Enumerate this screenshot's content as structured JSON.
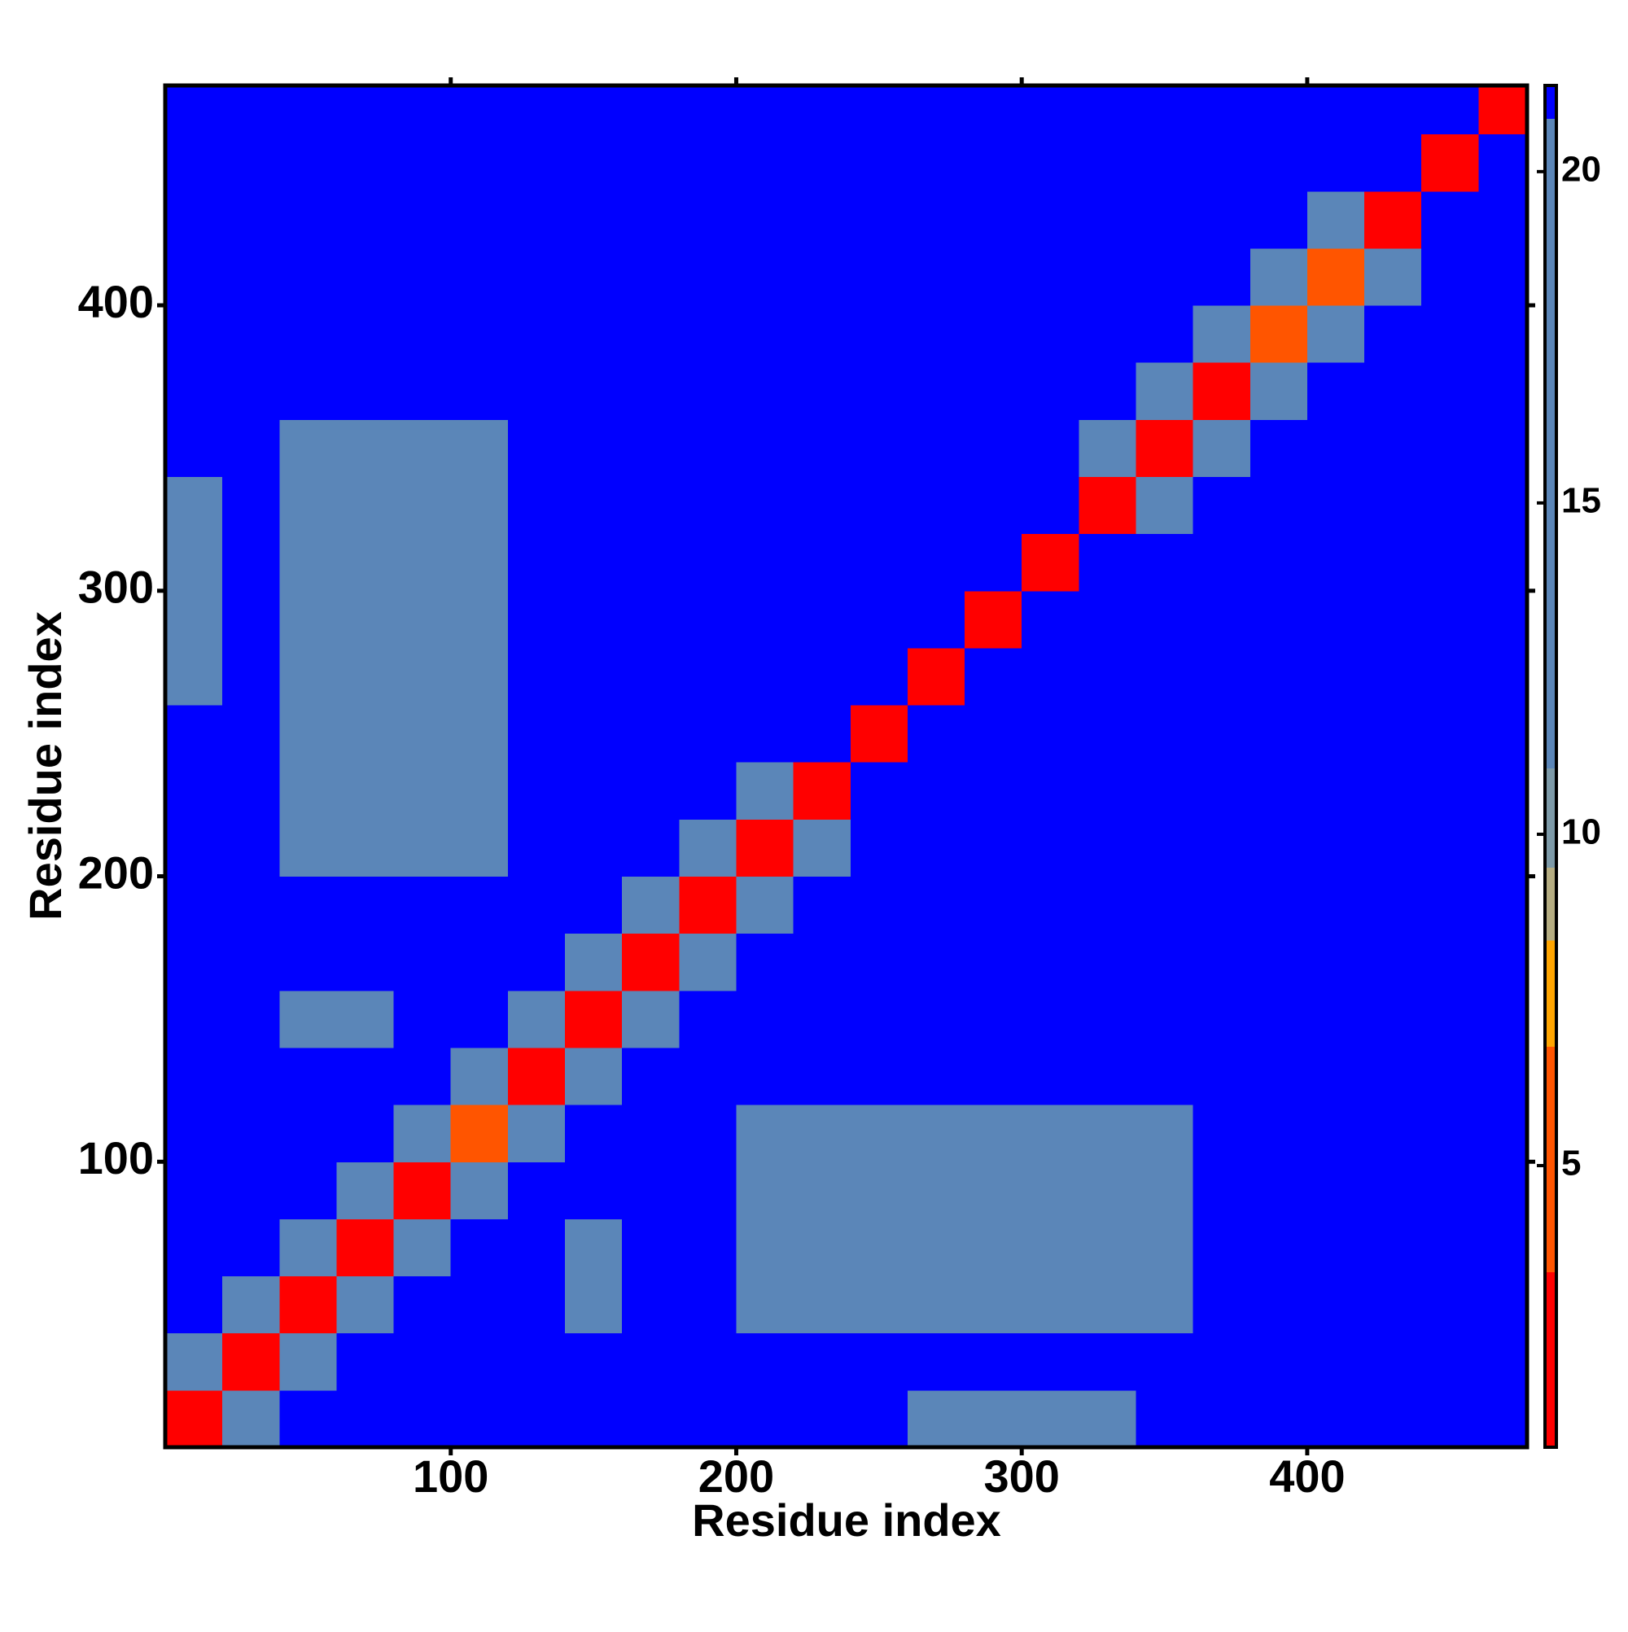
{
  "chart_data": {
    "type": "heatmap",
    "xlabel": "Residue index",
    "ylabel": "Residue index",
    "xlim": [
      0,
      477
    ],
    "ylim": [
      0,
      477
    ],
    "xticks": [
      100,
      200,
      300,
      400
    ],
    "yticks": [
      100,
      200,
      300,
      400
    ],
    "xbins": [
      0,
      20,
      40,
      60,
      80,
      100,
      120,
      140,
      160,
      180,
      200,
      220,
      240,
      260,
      280,
      300,
      320,
      340,
      360,
      380,
      400,
      420,
      440,
      460,
      477
    ],
    "ybins": [
      0,
      20,
      40,
      60,
      80,
      100,
      120,
      140,
      160,
      180,
      200,
      220,
      240,
      260,
      280,
      300,
      320,
      340,
      360,
      380,
      400,
      420,
      440,
      460,
      477
    ],
    "z": [
      [
        3,
        14,
        21,
        21,
        21,
        21,
        21,
        21,
        21,
        21,
        21,
        21,
        21,
        18,
        18,
        18,
        18,
        21,
        21,
        21,
        21,
        21,
        21,
        21
      ],
      [
        14,
        3,
        14,
        21,
        21,
        21,
        21,
        21,
        21,
        21,
        21,
        21,
        21,
        21,
        21,
        21,
        21,
        21,
        21,
        21,
        21,
        21,
        21,
        21
      ],
      [
        21,
        14,
        3,
        14,
        21,
        21,
        21,
        18,
        21,
        21,
        18,
        17,
        15,
        15,
        15,
        17,
        17,
        17,
        21,
        21,
        21,
        21,
        21,
        21
      ],
      [
        21,
        21,
        14,
        3,
        14,
        21,
        21,
        18,
        21,
        21,
        18,
        17,
        15,
        15,
        15,
        17,
        17,
        17,
        21,
        21,
        21,
        21,
        21,
        21
      ],
      [
        21,
        21,
        21,
        14,
        3,
        14,
        21,
        21,
        21,
        21,
        18,
        17,
        15,
        15,
        15,
        17,
        17,
        17,
        21,
        21,
        21,
        21,
        21,
        21
      ],
      [
        21,
        21,
        21,
        21,
        14,
        6,
        14,
        21,
        21,
        21,
        18,
        17,
        15,
        15,
        15,
        17,
        17,
        17,
        21,
        21,
        21,
        21,
        21,
        21
      ],
      [
        21,
        21,
        21,
        21,
        21,
        14,
        3,
        17,
        21,
        21,
        21,
        21,
        21,
        21,
        21,
        21,
        21,
        21,
        21,
        21,
        21,
        21,
        21,
        21
      ],
      [
        21,
        21,
        18,
        18,
        21,
        21,
        17,
        3,
        17,
        21,
        21,
        21,
        21,
        21,
        21,
        21,
        21,
        21,
        21,
        21,
        21,
        21,
        21,
        21
      ],
      [
        21,
        21,
        21,
        21,
        21,
        21,
        21,
        17,
        3,
        17,
        21,
        21,
        21,
        21,
        21,
        21,
        21,
        21,
        21,
        21,
        21,
        21,
        21,
        21
      ],
      [
        21,
        21,
        21,
        21,
        21,
        21,
        21,
        21,
        17,
        3,
        17,
        21,
        21,
        21,
        21,
        21,
        21,
        21,
        21,
        21,
        21,
        21,
        21,
        21
      ],
      [
        21,
        21,
        18,
        18,
        18,
        18,
        21,
        21,
        21,
        17,
        3,
        17,
        21,
        21,
        21,
        21,
        21,
        21,
        21,
        21,
        21,
        21,
        21,
        21
      ],
      [
        21,
        21,
        17,
        17,
        17,
        17,
        21,
        21,
        21,
        21,
        17,
        3,
        21,
        21,
        21,
        21,
        21,
        21,
        21,
        21,
        21,
        21,
        21,
        21
      ],
      [
        21,
        21,
        15,
        15,
        15,
        15,
        21,
        21,
        21,
        21,
        21,
        21,
        3,
        21,
        21,
        21,
        21,
        21,
        21,
        21,
        21,
        21,
        21,
        21
      ],
      [
        18,
        21,
        15,
        15,
        15,
        15,
        21,
        21,
        21,
        21,
        21,
        21,
        21,
        3,
        21,
        21,
        21,
        21,
        21,
        21,
        21,
        21,
        21,
        21
      ],
      [
        18,
        21,
        15,
        15,
        15,
        15,
        21,
        21,
        21,
        21,
        21,
        21,
        21,
        21,
        3,
        21,
        21,
        21,
        21,
        21,
        21,
        21,
        21,
        21
      ],
      [
        18,
        21,
        17,
        17,
        17,
        17,
        21,
        21,
        21,
        21,
        21,
        21,
        21,
        21,
        21,
        3,
        21,
        21,
        21,
        21,
        21,
        21,
        21,
        21
      ],
      [
        18,
        21,
        17,
        17,
        17,
        17,
        21,
        21,
        21,
        21,
        21,
        21,
        21,
        21,
        21,
        21,
        3,
        15,
        21,
        21,
        21,
        21,
        21,
        21
      ],
      [
        21,
        21,
        17,
        17,
        17,
        17,
        21,
        21,
        21,
        21,
        21,
        21,
        21,
        21,
        21,
        21,
        15,
        3,
        15,
        21,
        21,
        21,
        21,
        21
      ],
      [
        21,
        21,
        21,
        21,
        21,
        21,
        21,
        21,
        21,
        21,
        21,
        21,
        21,
        21,
        21,
        21,
        21,
        15,
        3,
        15,
        21,
        21,
        21,
        21
      ],
      [
        21,
        21,
        21,
        21,
        21,
        21,
        21,
        21,
        21,
        21,
        21,
        21,
        21,
        21,
        21,
        21,
        21,
        21,
        15,
        6,
        15,
        21,
        21,
        21
      ],
      [
        21,
        21,
        21,
        21,
        21,
        21,
        21,
        21,
        21,
        21,
        21,
        21,
        21,
        21,
        21,
        21,
        21,
        21,
        21,
        15,
        6,
        15,
        21,
        21
      ],
      [
        21,
        21,
        21,
        21,
        21,
        21,
        21,
        21,
        21,
        21,
        21,
        21,
        21,
        21,
        21,
        21,
        21,
        21,
        21,
        21,
        15,
        3,
        21,
        21
      ],
      [
        21,
        21,
        21,
        21,
        21,
        21,
        21,
        21,
        21,
        21,
        21,
        21,
        21,
        21,
        21,
        21,
        21,
        21,
        21,
        21,
        21,
        21,
        3,
        21
      ],
      [
        21,
        21,
        21,
        21,
        21,
        21,
        21,
        21,
        21,
        21,
        21,
        21,
        21,
        21,
        21,
        21,
        21,
        21,
        21,
        21,
        21,
        21,
        21,
        3
      ]
    ],
    "colorbar": {
      "lim": [
        0.75,
        21.3
      ],
      "ticks": [
        5,
        10,
        15,
        20
      ],
      "stops": [
        [
          0.75,
          "#ff0000"
        ],
        [
          3.4,
          "#ff5500"
        ],
        [
          6.8,
          "#ffa500"
        ],
        [
          8.4,
          "#b5ad82"
        ],
        [
          9.5,
          "#7d9aa8"
        ],
        [
          11,
          "#5b86b8"
        ],
        [
          20.8,
          "#0000ff"
        ]
      ]
    }
  }
}
